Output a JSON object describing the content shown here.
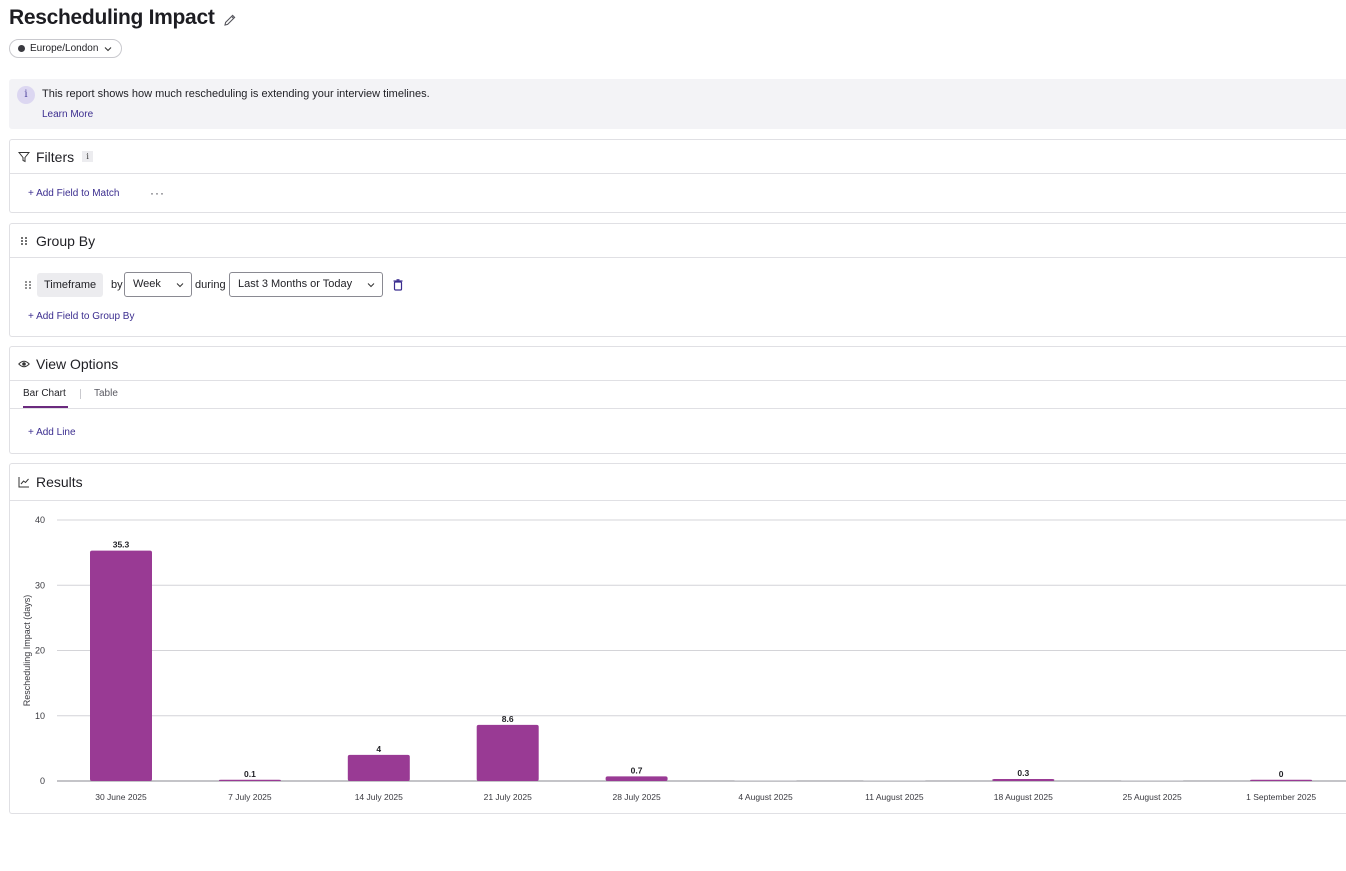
{
  "header": {
    "title": "Rescheduling Impact",
    "timezone": "Europe/London"
  },
  "info_banner": {
    "text": "This report shows how much rescheduling is extending your interview timelines.",
    "link": "Learn More"
  },
  "filters": {
    "title": "Filters",
    "tooltip": "i",
    "add_label": "+ Add Field to Match",
    "more_label": "···"
  },
  "group_by": {
    "title": "Group By",
    "field": "Timeframe",
    "by_label": "by",
    "interval": "Week",
    "during_label": "during",
    "range": "Last 3 Months or Today",
    "add_label": "+ Add Field to Group By"
  },
  "view_options": {
    "title": "View Options",
    "tabs": [
      {
        "label": "Bar Chart",
        "active": true
      },
      {
        "label": "Table",
        "active": false
      }
    ],
    "add_line_label": "+ Add Line"
  },
  "results": {
    "title": "Results"
  },
  "chart_data": {
    "type": "bar",
    "title": "",
    "xlabel": "",
    "ylabel": "Rescheduling Impact (days)",
    "ylim": [
      0,
      40
    ],
    "yticks": [
      0,
      10,
      20,
      30,
      40
    ],
    "grid": true,
    "bar_color": "#993a94",
    "categories": [
      "30 June 2025",
      "7 July 2025",
      "14 July 2025",
      "21 July 2025",
      "28 July 2025",
      "4 August 2025",
      "11 August 2025",
      "18 August 2025",
      "25 August 2025",
      "1 September 2025"
    ],
    "values": [
      35.3,
      0.1,
      4,
      8.6,
      0.7,
      null,
      null,
      0.3,
      null,
      0
    ],
    "data_labels": [
      "35.3",
      "0.1",
      "4",
      "8.6",
      "0.7",
      "",
      "",
      "0.3",
      "",
      "0"
    ]
  },
  "colors": {
    "accent": "#3b2d8f",
    "bar": "#993a94",
    "tab_underline": "#6b2a7e"
  }
}
